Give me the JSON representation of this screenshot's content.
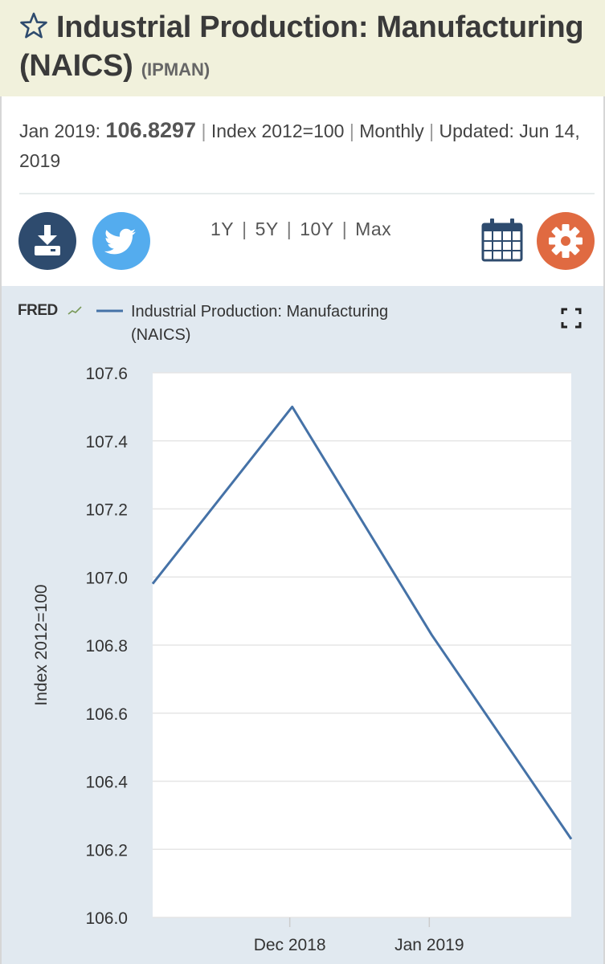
{
  "header": {
    "title": "Industrial Production: Manufacturing (NAICS)",
    "series_id": "(IPMAN)",
    "star_icon": "star-outline-icon"
  },
  "meta": {
    "date_label": "Jan 2019:",
    "value": "106.8297",
    "units": "Index 2012=100",
    "frequency": "Monthly",
    "updated_label": "Updated:",
    "updated_date": "Jun 14, 2019",
    "separator": "|"
  },
  "toolbar": {
    "download_icon": "download-icon",
    "twitter_icon": "twitter-icon",
    "calendar_icon": "calendar-icon",
    "settings_icon": "gear-icon",
    "ranges": [
      "1Y",
      "5Y",
      "10Y",
      "Max"
    ],
    "colors": {
      "download": "#2e4b6e",
      "twitter": "#54acee",
      "settings": "#e06a41"
    }
  },
  "chart_data": {
    "type": "line",
    "brand": "FRED",
    "legend": "Industrial Production: Manufacturing (NAICS)",
    "legend_lines": [
      "Industrial Production: Manufacturing",
      "(NAICS)"
    ],
    "fullscreen_icon": "fullscreen-icon",
    "ylabel": "Index 2012=100",
    "ylim": [
      106.0,
      107.6
    ],
    "yticks": [
      "106.0",
      "106.2",
      "106.4",
      "106.6",
      "106.8",
      "107.0",
      "107.2",
      "107.4",
      "107.6"
    ],
    "xticks": [
      "Dec 2018",
      "Jan 2019"
    ],
    "grid": true,
    "line_color": "#4572a7",
    "series": [
      {
        "name": "Industrial Production: Manufacturing (NAICS)",
        "x": [
          "2018-11",
          "2018-12",
          "2019-01",
          "2019-02"
        ],
        "values": [
          106.98,
          107.5,
          106.83,
          106.23
        ]
      }
    ]
  }
}
